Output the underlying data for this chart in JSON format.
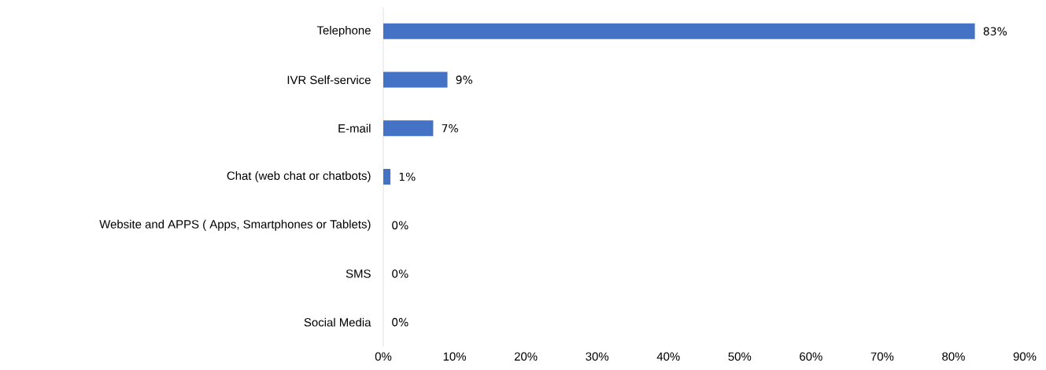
{
  "chart_data": {
    "type": "bar",
    "orientation": "horizontal",
    "categories": [
      "Telephone",
      "IVR Self-service",
      "E-mail",
      "Chat (web chat or chatbots)",
      "Website and APPS ( Apps, Smartphones or Tablets)",
      "SMS",
      "Social Media"
    ],
    "values": [
      83,
      9,
      7,
      1,
      0,
      0,
      0
    ],
    "value_labels": [
      "83%",
      "9%",
      "7%",
      "1%",
      "0%",
      "0%",
      "0%"
    ],
    "color": "#4472c4",
    "xlim": [
      0,
      90
    ],
    "xticks": [
      {
        "value": 0,
        "label": "0%"
      },
      {
        "value": 10,
        "label": "10%"
      },
      {
        "value": 20,
        "label": "20%"
      },
      {
        "value": 30,
        "label": "30%"
      },
      {
        "value": 40,
        "label": "40%"
      },
      {
        "value": 50,
        "label": "50%"
      },
      {
        "value": 60,
        "label": "60%"
      },
      {
        "value": 70,
        "label": "70%"
      },
      {
        "value": 80,
        "label": "80%"
      },
      {
        "value": 90,
        "label": "90%"
      }
    ],
    "grid": false
  }
}
